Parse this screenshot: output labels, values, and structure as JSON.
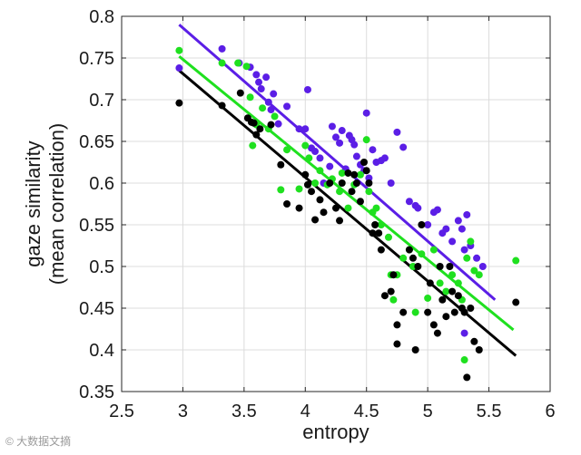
{
  "watermark": "© 大数据文摘",
  "colors": {
    "purple": "#5b1ee6",
    "green": "#1fe01f",
    "black": "#000000",
    "grid": "#dcdcdc",
    "axis": "#262626"
  },
  "chart_data": {
    "type": "scatter",
    "title": "",
    "xlabel": "entropy",
    "ylabel_lines": [
      "gaze similarity",
      "(mean correlation)"
    ],
    "xlim": [
      2.5,
      6
    ],
    "ylim": [
      0.35,
      0.8
    ],
    "xticks": [
      2.5,
      3,
      3.5,
      4,
      4.5,
      5,
      5.5,
      6
    ],
    "yticks": [
      0.35,
      0.4,
      0.45,
      0.5,
      0.55,
      0.6,
      0.65,
      0.7,
      0.75,
      0.8
    ],
    "xtick_labels": [
      "2.5",
      "3",
      "3.5",
      "4",
      "4.5",
      "5",
      "5.5",
      "6"
    ],
    "ytick_labels": [
      "0.35",
      "0.4",
      "0.45",
      "0.5",
      "0.55",
      "0.6",
      "0.65",
      "0.7",
      "0.75",
      "0.8"
    ],
    "grid": true,
    "series": [
      {
        "name": "purple",
        "color": "#5b1ee6",
        "fit": [
          [
            2.97,
            0.79
          ],
          [
            5.55,
            0.46
          ]
        ],
        "points": [
          [
            2.97,
            0.738
          ],
          [
            3.32,
            0.761
          ],
          [
            3.46,
            0.744
          ],
          [
            3.55,
            0.739
          ],
          [
            3.6,
            0.73
          ],
          [
            3.62,
            0.721
          ],
          [
            3.64,
            0.713
          ],
          [
            3.68,
            0.727
          ],
          [
            3.7,
            0.697
          ],
          [
            3.72,
            0.688
          ],
          [
            3.74,
            0.707
          ],
          [
            3.78,
            0.671
          ],
          [
            3.85,
            0.692
          ],
          [
            3.95,
            0.665
          ],
          [
            4.0,
            0.665
          ],
          [
            4.02,
            0.712
          ],
          [
            4.05,
            0.642
          ],
          [
            4.08,
            0.638
          ],
          [
            4.12,
            0.63
          ],
          [
            4.15,
            0.6
          ],
          [
            4.2,
            0.62
          ],
          [
            4.22,
            0.668
          ],
          [
            4.25,
            0.655
          ],
          [
            4.28,
            0.648
          ],
          [
            4.3,
            0.663
          ],
          [
            4.33,
            0.617
          ],
          [
            4.36,
            0.657
          ],
          [
            4.38,
            0.652
          ],
          [
            4.4,
            0.646
          ],
          [
            4.42,
            0.632
          ],
          [
            4.45,
            0.622
          ],
          [
            4.48,
            0.615
          ],
          [
            4.5,
            0.684
          ],
          [
            4.52,
            0.606
          ],
          [
            4.55,
            0.64
          ],
          [
            4.58,
            0.625
          ],
          [
            4.62,
            0.627
          ],
          [
            4.65,
            0.63
          ],
          [
            4.7,
            0.6
          ],
          [
            4.75,
            0.661
          ],
          [
            4.8,
            0.643
          ],
          [
            4.85,
            0.578
          ],
          [
            4.9,
            0.573
          ],
          [
            4.92,
            0.57
          ],
          [
            5.0,
            0.55
          ],
          [
            5.05,
            0.565
          ],
          [
            5.08,
            0.568
          ],
          [
            5.12,
            0.54
          ],
          [
            5.15,
            0.545
          ],
          [
            5.2,
            0.53
          ],
          [
            5.25,
            0.555
          ],
          [
            5.28,
            0.545
          ],
          [
            5.3,
            0.52
          ],
          [
            5.32,
            0.562
          ],
          [
            5.35,
            0.525
          ],
          [
            5.4,
            0.51
          ],
          [
            5.45,
            0.5
          ],
          [
            5.3,
            0.42
          ]
        ]
      },
      {
        "name": "green",
        "color": "#1fe01f",
        "fit": [
          [
            2.97,
            0.752
          ],
          [
            5.7,
            0.424
          ]
        ],
        "points": [
          [
            2.97,
            0.759
          ],
          [
            3.32,
            0.744
          ],
          [
            3.45,
            0.744
          ],
          [
            3.52,
            0.74
          ],
          [
            3.55,
            0.703
          ],
          [
            3.57,
            0.645
          ],
          [
            3.6,
            0.67
          ],
          [
            3.65,
            0.69
          ],
          [
            3.7,
            0.665
          ],
          [
            3.75,
            0.68
          ],
          [
            3.8,
            0.592
          ],
          [
            3.85,
            0.64
          ],
          [
            3.95,
            0.593
          ],
          [
            4.0,
            0.645
          ],
          [
            4.03,
            0.63
          ],
          [
            4.08,
            0.6
          ],
          [
            4.12,
            0.615
          ],
          [
            4.18,
            0.598
          ],
          [
            4.22,
            0.605
          ],
          [
            4.28,
            0.59
          ],
          [
            4.3,
            0.612
          ],
          [
            4.35,
            0.57
          ],
          [
            4.4,
            0.598
          ],
          [
            4.45,
            0.61
          ],
          [
            4.5,
            0.652
          ],
          [
            4.52,
            0.59
          ],
          [
            4.55,
            0.565
          ],
          [
            4.58,
            0.57
          ],
          [
            4.62,
            0.55
          ],
          [
            4.68,
            0.535
          ],
          [
            4.7,
            0.49
          ],
          [
            4.72,
            0.46
          ],
          [
            4.75,
            0.49
          ],
          [
            4.8,
            0.51
          ],
          [
            4.85,
            0.52
          ],
          [
            4.88,
            0.5
          ],
          [
            4.9,
            0.445
          ],
          [
            4.95,
            0.515
          ],
          [
            5.0,
            0.462
          ],
          [
            5.05,
            0.52
          ],
          [
            5.1,
            0.48
          ],
          [
            5.15,
            0.47
          ],
          [
            5.2,
            0.49
          ],
          [
            5.25,
            0.48
          ],
          [
            5.28,
            0.46
          ],
          [
            5.3,
            0.388
          ],
          [
            5.32,
            0.51
          ],
          [
            5.35,
            0.53
          ],
          [
            5.38,
            0.495
          ],
          [
            5.42,
            0.49
          ],
          [
            5.72,
            0.507
          ]
        ]
      },
      {
        "name": "black",
        "color": "#000000",
        "fit": [
          [
            2.97,
            0.735
          ],
          [
            5.72,
            0.393
          ]
        ],
        "points": [
          [
            2.97,
            0.696
          ],
          [
            3.32,
            0.693
          ],
          [
            3.47,
            0.708
          ],
          [
            3.53,
            0.678
          ],
          [
            3.56,
            0.673
          ],
          [
            3.58,
            0.672
          ],
          [
            3.6,
            0.658
          ],
          [
            3.63,
            0.665
          ],
          [
            3.72,
            0.67
          ],
          [
            3.8,
            0.622
          ],
          [
            3.85,
            0.575
          ],
          [
            3.95,
            0.57
          ],
          [
            4.0,
            0.61
          ],
          [
            4.02,
            0.598
          ],
          [
            4.05,
            0.59
          ],
          [
            4.08,
            0.556
          ],
          [
            4.12,
            0.58
          ],
          [
            4.15,
            0.565
          ],
          [
            4.2,
            0.6
          ],
          [
            4.25,
            0.57
          ],
          [
            4.28,
            0.555
          ],
          [
            4.3,
            0.6
          ],
          [
            4.35,
            0.612
          ],
          [
            4.38,
            0.59
          ],
          [
            4.4,
            0.61
          ],
          [
            4.42,
            0.6
          ],
          [
            4.45,
            0.578
          ],
          [
            4.48,
            0.625
          ],
          [
            4.5,
            0.615
          ],
          [
            4.52,
            0.6
          ],
          [
            4.55,
            0.54
          ],
          [
            4.57,
            0.55
          ],
          [
            4.6,
            0.54
          ],
          [
            4.62,
            0.52
          ],
          [
            4.65,
            0.465
          ],
          [
            4.7,
            0.47
          ],
          [
            4.72,
            0.49
          ],
          [
            4.75,
            0.43
          ],
          [
            4.8,
            0.445
          ],
          [
            4.85,
            0.52
          ],
          [
            4.88,
            0.51
          ],
          [
            4.9,
            0.4
          ],
          [
            4.92,
            0.5
          ],
          [
            4.95,
            0.55
          ],
          [
            5.0,
            0.445
          ],
          [
            5.02,
            0.48
          ],
          [
            5.05,
            0.43
          ],
          [
            5.08,
            0.42
          ],
          [
            5.1,
            0.5
          ],
          [
            5.12,
            0.46
          ],
          [
            5.15,
            0.44
          ],
          [
            5.18,
            0.5
          ],
          [
            5.2,
            0.47
          ],
          [
            5.22,
            0.445
          ],
          [
            5.25,
            0.465
          ],
          [
            5.28,
            0.45
          ],
          [
            5.3,
            0.445
          ],
          [
            5.32,
            0.367
          ],
          [
            5.35,
            0.45
          ],
          [
            5.38,
            0.41
          ],
          [
            5.42,
            0.4
          ],
          [
            5.72,
            0.457
          ],
          [
            4.75,
            0.407
          ]
        ]
      }
    ]
  }
}
